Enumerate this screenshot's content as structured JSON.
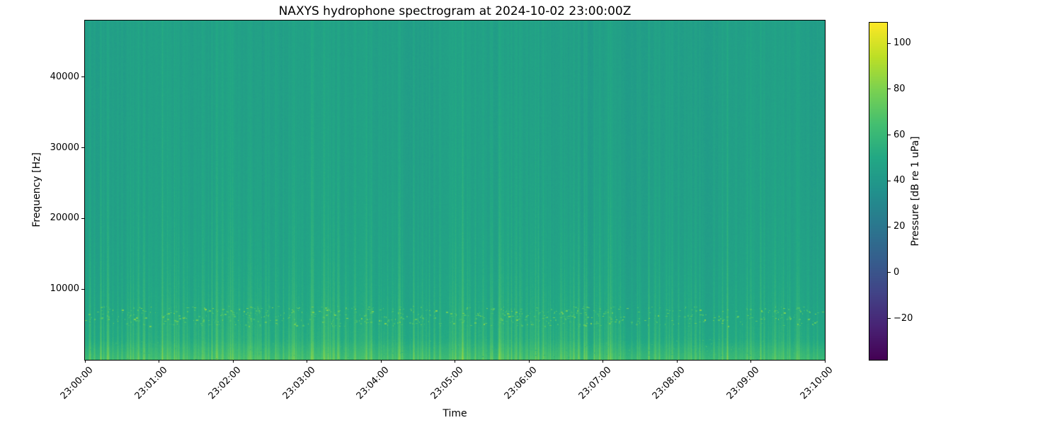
{
  "figure": {
    "title": "NAXYS hydrophone spectrogram at 2024-10-02 23:00:00Z",
    "xlabel": "Time",
    "ylabel": "Frequency [Hz]"
  },
  "chart_data": {
    "type": "heatmap",
    "title": "NAXYS hydrophone spectrogram at 2024-10-02 23:00:00Z",
    "xlabel": "Time",
    "ylabel": "Frequency [Hz]",
    "x_tick_labels": [
      "23:00:00",
      "23:01:00",
      "23:02:00",
      "23:03:00",
      "23:04:00",
      "23:05:00",
      "23:06:00",
      "23:07:00",
      "23:08:00",
      "23:09:00",
      "23:10:00"
    ],
    "y_tick_values": [
      10000,
      20000,
      30000,
      40000
    ],
    "y_range_hz": [
      0,
      48000
    ],
    "colormap": "viridis",
    "color_limits_db": [
      -38,
      109
    ],
    "colorbar_label": "Pressure [dB re 1 uPa]",
    "colorbar_tick_values": [
      100,
      80,
      60,
      40,
      20,
      0,
      -20
    ],
    "background_level_db": 44,
    "low_freq_rolloff_gain_db": 8,
    "features": [
      {
        "name": "broadband-transient-clicks",
        "description": "many narrow vertical striations across the whole band, strongest below ~16 kHz, 50-75 dB"
      },
      {
        "name": "click-band-speckles",
        "frequency_hz": [
          4800,
          7600
        ],
        "level_db": [
          62,
          85
        ],
        "description": "bright green-yellow dashes aligned with transient columns"
      },
      {
        "name": "low-frequency-band",
        "frequency_hz": [
          0,
          3000
        ],
        "level_db": [
          52,
          62
        ],
        "description": "brighter green strip along the bottom of the spectrogram"
      }
    ]
  }
}
